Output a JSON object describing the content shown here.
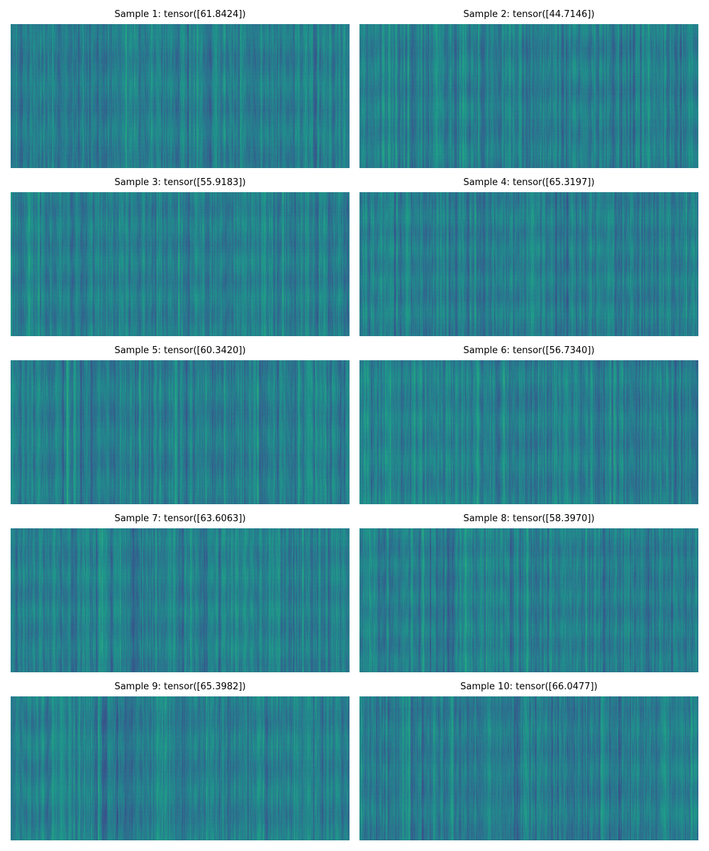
{
  "chart_data": {
    "type": "heatmap",
    "colormap": "viridis",
    "axes_visible": false,
    "grid": false,
    "layout": "5 rows x 2 columns",
    "panels": [
      {
        "title": "Sample 1: tensor([61.8424])",
        "value": 61.8424
      },
      {
        "title": "Sample 2: tensor([44.7146])",
        "value": 44.7146
      },
      {
        "title": "Sample 3: tensor([55.9183])",
        "value": 55.9183
      },
      {
        "title": "Sample 4: tensor([65.3197])",
        "value": 65.3197
      },
      {
        "title": "Sample 5: tensor([60.3420])",
        "value": 60.342
      },
      {
        "title": "Sample 6: tensor([56.7340])",
        "value": 56.734
      },
      {
        "title": "Sample 7: tensor([63.6063])",
        "value": 63.6063
      },
      {
        "title": "Sample 8: tensor([58.3970])",
        "value": 58.397
      },
      {
        "title": "Sample 9: tensor([65.3982])",
        "value": 65.3982
      },
      {
        "title": "Sample 10: tensor([66.0477])",
        "value": 66.0477
      }
    ]
  }
}
